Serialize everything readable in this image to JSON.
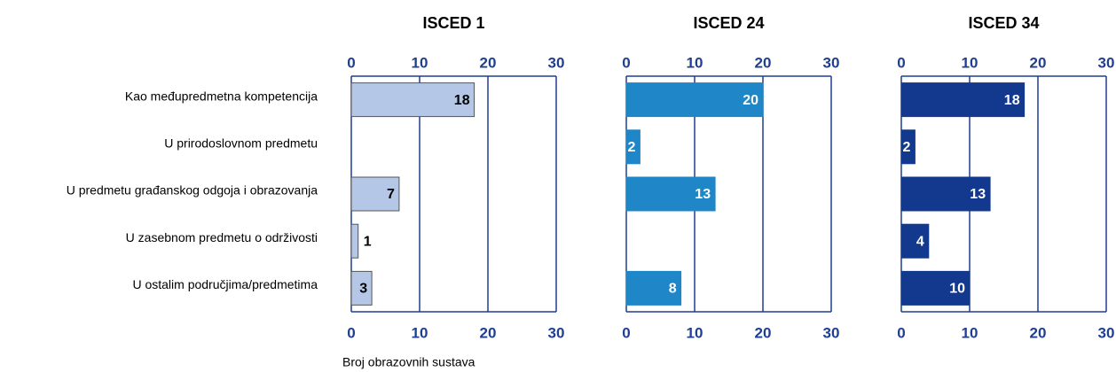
{
  "chart_data": [
    {
      "type": "bar",
      "title": "ISCED 1",
      "orientation": "horizontal",
      "categories": [
        "Kao međupredmetna kompetencija",
        "U prirodoslovnom predmetu",
        "U predmetu građanskog odgoja i obrazovanja",
        "U zasebnom predmetu o održivosti",
        "U ostalim područjima/predmetima"
      ],
      "values": [
        18,
        null,
        7,
        1,
        3
      ],
      "color": "#b4c7e7",
      "label_color": "#000000",
      "xlim": [
        0,
        30
      ],
      "xticks": [
        0,
        10,
        20,
        30
      ],
      "xlabel": "Broj obrazovnih sustava"
    },
    {
      "type": "bar",
      "title": "ISCED 24",
      "orientation": "horizontal",
      "values": [
        20,
        2,
        13,
        null,
        8
      ],
      "color": "#1f86c8",
      "label_color": "#ffffff",
      "xlim": [
        0,
        30
      ],
      "xticks": [
        0,
        10,
        20,
        30
      ]
    },
    {
      "type": "bar",
      "title": "ISCED 34",
      "orientation": "horizontal",
      "values": [
        18,
        2,
        13,
        4,
        10
      ],
      "color": "#12398e",
      "label_color": "#ffffff",
      "xlim": [
        0,
        30
      ],
      "xticks": [
        0,
        10,
        20,
        30
      ]
    }
  ]
}
